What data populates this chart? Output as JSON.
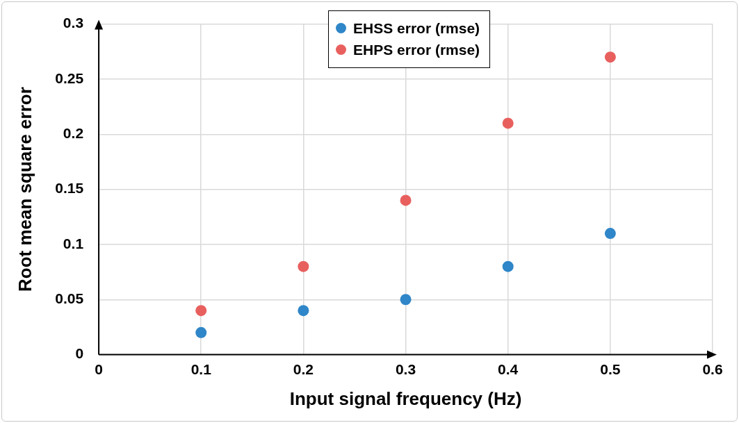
{
  "chart_data": {
    "type": "scatter",
    "xlabel": "Input signal frequency (Hz)",
    "ylabel": "Root mean square error",
    "x": [
      0.1,
      0.2,
      0.3,
      0.4,
      0.5
    ],
    "series": [
      {
        "name": "EHSS error (rmse)",
        "color": "#2f86c8",
        "values": [
          0.02,
          0.04,
          0.05,
          0.08,
          0.11
        ]
      },
      {
        "name": "EHPS error (rmse)",
        "color": "#e8605e",
        "values": [
          0.04,
          0.08,
          0.14,
          0.21,
          0.27
        ]
      }
    ],
    "xlim": [
      0,
      0.6
    ],
    "xticks": [
      0,
      0.1,
      0.2,
      0.3,
      0.4,
      0.5,
      0.6
    ],
    "ylim": [
      0,
      0.3
    ],
    "yticks": [
      0,
      0.05,
      0.1,
      0.15,
      0.2,
      0.25,
      0.3
    ],
    "grid": true,
    "legend": "top",
    "marker": "circle"
  }
}
